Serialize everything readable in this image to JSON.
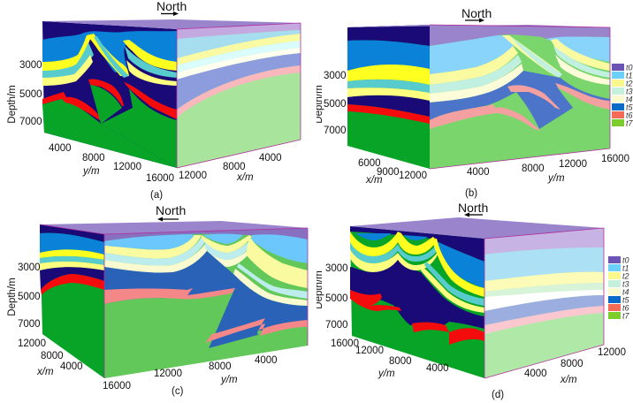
{
  "figure": {
    "north_label": "North",
    "depth_axis_label": "Depth/m",
    "depth_ticks": [
      "3000",
      "5000",
      "7000"
    ],
    "legend": {
      "entries": [
        {
          "label": "t0",
          "color": "#6a54b4"
        },
        {
          "label": "t1",
          "color": "#6cd0f8"
        },
        {
          "label": "t2",
          "color": "#f8f88c"
        },
        {
          "label": "t3",
          "color": "#c4f0dc"
        },
        {
          "label": "t4",
          "color": "#fafad0"
        },
        {
          "label": "t5",
          "color": "#0a6ac8"
        },
        {
          "label": "t6",
          "color": "#f46c58"
        },
        {
          "label": "t7",
          "color": "#7ccc2c"
        }
      ]
    },
    "layer_colors_left": {
      "t0": "#1a0a78",
      "t1": "#0a82d8",
      "t2": "#ffff20",
      "t3": "#58cccc",
      "t4": "#ffff80",
      "t5": "#1a0a78",
      "t6": "#f40c0c",
      "t7": "#08a428"
    },
    "top_face_color": "#9a84cc",
    "panels": [
      {
        "id": "a",
        "caption": "(a)",
        "north_direction": "right",
        "front_axis": {
          "label": "y/m",
          "ticks": [
            "4000",
            "8000",
            "12000",
            "16000"
          ]
        },
        "side_axis": {
          "label": "x/m",
          "ticks": [
            "12000",
            "8000",
            "4000"
          ]
        }
      },
      {
        "id": "b",
        "caption": "(b)",
        "north_direction": "right",
        "front_axis": {
          "label": "x/m",
          "ticks": [
            "6000",
            "9000",
            "12000"
          ]
        },
        "side_axis": {
          "label": "y/m",
          "ticks": [
            "4000",
            "8000",
            "12000",
            "16000"
          ]
        }
      },
      {
        "id": "c",
        "caption": "(c)",
        "north_direction": "left",
        "front_axis": {
          "label": "x/m",
          "ticks": [
            "12000",
            "8000",
            "4000"
          ]
        },
        "side_axis": {
          "label": "y/m",
          "ticks": [
            "16000",
            "12000",
            "8000",
            "4000"
          ]
        }
      },
      {
        "id": "d",
        "caption": "(d)",
        "north_direction": "left",
        "front_axis": {
          "label": "y/m",
          "ticks": [
            "16000",
            "12000",
            "8000",
            "4000"
          ]
        },
        "side_axis": {
          "label": "x/m",
          "ticks": [
            "4000",
            "8000",
            "12000"
          ]
        }
      }
    ]
  }
}
